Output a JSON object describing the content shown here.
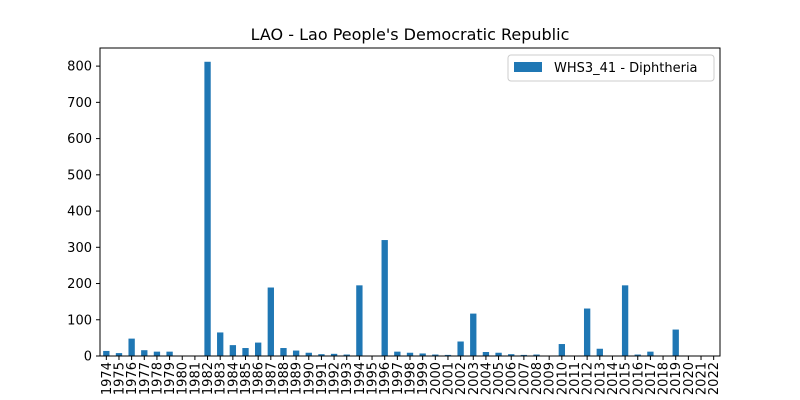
{
  "chart_data": {
    "type": "bar",
    "title": "LAO - Lao People's Democratic Republic",
    "xlabel": "",
    "ylabel": "",
    "ylim": [
      0,
      850
    ],
    "yticks": [
      0,
      100,
      200,
      300,
      400,
      500,
      600,
      700,
      800
    ],
    "grid": false,
    "legend_position": "top-right",
    "bar_color": "#1f77b4",
    "categories": [
      "1974",
      "1975",
      "1976",
      "1977",
      "1978",
      "1979",
      "1980",
      "1981",
      "1982",
      "1983",
      "1984",
      "1985",
      "1986",
      "1987",
      "1988",
      "1989",
      "1990",
      "1991",
      "1992",
      "1993",
      "1994",
      "1995",
      "1996",
      "1997",
      "1998",
      "1999",
      "2000",
      "2001",
      "2002",
      "2003",
      "2004",
      "2005",
      "2006",
      "2007",
      "2008",
      "2009",
      "2010",
      "2011",
      "2012",
      "2013",
      "2014",
      "2015",
      "2016",
      "2017",
      "2018",
      "2019",
      "2020",
      "2021",
      "2022"
    ],
    "series": [
      {
        "name": "WHS3_41 - Diphtheria",
        "values": [
          14,
          8,
          48,
          16,
          12,
          12,
          0,
          0,
          812,
          65,
          30,
          22,
          37,
          189,
          22,
          15,
          9,
          5,
          6,
          4,
          195,
          0,
          320,
          12,
          9,
          7,
          4,
          3,
          40,
          117,
          11,
          9,
          5,
          3,
          4,
          0,
          33,
          0,
          131,
          20,
          0,
          195,
          4,
          12,
          0,
          73,
          0,
          0,
          0
        ]
      }
    ]
  }
}
